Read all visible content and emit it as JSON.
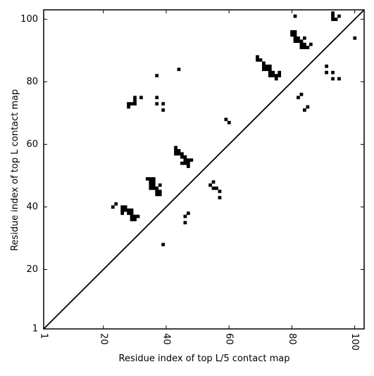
{
  "chart_data": {
    "type": "heatmap",
    "title": "",
    "xlabel": "Residue index of top L/5 contact map",
    "ylabel": "Residue index of top L contact map",
    "xlim": [
      1,
      103
    ],
    "ylim": [
      1,
      103
    ],
    "x_ticks": [
      "1",
      "20",
      "40",
      "60",
      "80",
      "100"
    ],
    "y_ticks": [
      "1",
      "20",
      "40",
      "60",
      "80",
      "100"
    ],
    "x_tick_values": [
      1,
      20,
      40,
      60,
      80,
      100
    ],
    "y_tick_values": [
      1,
      20,
      40,
      60,
      80,
      100
    ],
    "x_tick_rotation": 270,
    "diagonal": [
      [
        1,
        1
      ],
      [
        103,
        103
      ]
    ],
    "grid": false,
    "colors": {
      "contact": "#000000",
      "background": "#ffffff"
    },
    "lower_triangle_contacts": [
      [
        23,
        40
      ],
      [
        24,
        41
      ],
      [
        26,
        38
      ],
      [
        26,
        39
      ],
      [
        26,
        40
      ],
      [
        27,
        39
      ],
      [
        27,
        40
      ],
      [
        28,
        38
      ],
      [
        28,
        39
      ],
      [
        29,
        37
      ],
      [
        29,
        38
      ],
      [
        29,
        39
      ],
      [
        29,
        36
      ],
      [
        30,
        36
      ],
      [
        30,
        37
      ],
      [
        31,
        37
      ],
      [
        34,
        49
      ],
      [
        35,
        49
      ],
      [
        35,
        48
      ],
      [
        35,
        47
      ],
      [
        35,
        46
      ],
      [
        36,
        46
      ],
      [
        36,
        47
      ],
      [
        36,
        48
      ],
      [
        36,
        49
      ],
      [
        37,
        44
      ],
      [
        37,
        45
      ],
      [
        37,
        46
      ],
      [
        38,
        44
      ],
      [
        38,
        45
      ],
      [
        38,
        47
      ],
      [
        39,
        28
      ],
      [
        43,
        59
      ],
      [
        43,
        58
      ],
      [
        43,
        57
      ],
      [
        44,
        57
      ],
      [
        44,
        58
      ],
      [
        45,
        56
      ],
      [
        45,
        57
      ],
      [
        45,
        54
      ],
      [
        46,
        54
      ],
      [
        46,
        55
      ],
      [
        46,
        56
      ],
      [
        46,
        37
      ],
      [
        46,
        35
      ],
      [
        47,
        53
      ],
      [
        47,
        54
      ],
      [
        47,
        55
      ],
      [
        47,
        38
      ],
      [
        48,
        55
      ],
      [
        54,
        47
      ],
      [
        55,
        46
      ],
      [
        55,
        48
      ],
      [
        56,
        46
      ],
      [
        57,
        45
      ],
      [
        57,
        43
      ],
      [
        82,
        75
      ],
      [
        83,
        76
      ],
      [
        84,
        71
      ],
      [
        85,
        72
      ]
    ],
    "upper_triangle_contacts": [
      [
        28,
        72
      ],
      [
        28,
        73
      ],
      [
        29,
        73
      ],
      [
        30,
        73
      ],
      [
        30,
        74
      ],
      [
        30,
        75
      ],
      [
        32,
        75
      ],
      [
        37,
        82
      ],
      [
        37,
        75
      ],
      [
        37,
        73
      ],
      [
        39,
        73
      ],
      [
        39,
        71
      ],
      [
        44,
        84
      ],
      [
        59,
        68
      ],
      [
        60,
        67
      ],
      [
        69,
        87
      ],
      [
        69,
        88
      ],
      [
        70,
        87
      ],
      [
        71,
        84
      ],
      [
        71,
        85
      ],
      [
        71,
        86
      ],
      [
        72,
        84
      ],
      [
        72,
        85
      ],
      [
        73,
        82
      ],
      [
        73,
        83
      ],
      [
        73,
        84
      ],
      [
        73,
        85
      ],
      [
        74,
        82
      ],
      [
        74,
        83
      ],
      [
        75,
        81
      ],
      [
        75,
        82
      ],
      [
        76,
        82
      ],
      [
        76,
        83
      ],
      [
        80,
        95
      ],
      [
        80,
        96
      ],
      [
        81,
        93
      ],
      [
        81,
        94
      ],
      [
        81,
        95
      ],
      [
        81,
        96
      ],
      [
        81,
        101
      ],
      [
        82,
        93
      ],
      [
        82,
        94
      ],
      [
        83,
        91
      ],
      [
        83,
        92
      ],
      [
        83,
        93
      ],
      [
        84,
        91
      ],
      [
        84,
        92
      ],
      [
        84,
        94
      ],
      [
        85,
        91
      ],
      [
        86,
        92
      ],
      [
        91,
        83
      ],
      [
        91,
        85
      ],
      [
        93,
        81
      ],
      [
        93,
        83
      ],
      [
        95,
        81
      ],
      [
        93,
        100
      ],
      [
        93,
        101
      ],
      [
        93,
        102
      ],
      [
        94,
        100
      ],
      [
        95,
        101
      ],
      [
        100,
        94
      ]
    ]
  }
}
